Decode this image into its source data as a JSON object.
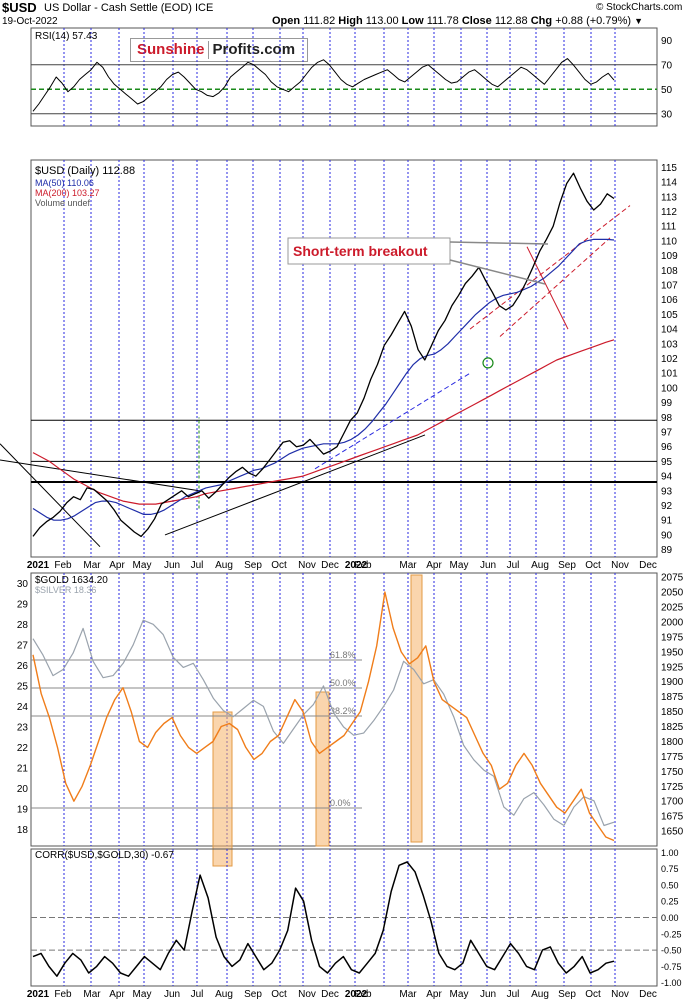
{
  "header": {
    "symbol": "$USD",
    "description": "US Dollar - Cash Settle (EOD) ICE",
    "date": "19-Oct-2022",
    "open_label": "Open",
    "open": "111.82",
    "high_label": "High",
    "high": "113.00",
    "low_label": "Low",
    "low": "111.78",
    "close_label": "Close",
    "close": "112.88",
    "chg_label": "Chg",
    "chg": "+0.88 (+0.79%)",
    "watermark": "© StockCharts.com"
  },
  "logo": {
    "part1": "Sunshine",
    "part2": "Profits.com"
  },
  "colors": {
    "usd_price": "#000000",
    "ma50": "#1f2ea8",
    "ma200": "#cc1b2b",
    "gold": "#f07d1a",
    "silver": "#9aa3ad",
    "corr": "#000000",
    "rsi_mid": "#1a8a1a",
    "month_grid": "#2a2ae0",
    "highlight": "#f5b26a",
    "annotation": "#cc1b2b",
    "trend_blue": "#2a2ae0"
  },
  "chart_data": [
    {
      "id": "rsi",
      "type": "line",
      "legend": "RSI(14) 57.43",
      "ylim": [
        20,
        100
      ],
      "ticks": [
        30,
        50,
        70,
        90
      ],
      "reference_lines": [
        30,
        50,
        70
      ],
      "series": [
        {
          "values": [
            32,
            38,
            45,
            52,
            60,
            55,
            48,
            52,
            58,
            62,
            66,
            72,
            68,
            60,
            54,
            50,
            46,
            42,
            38,
            40,
            44,
            48,
            52,
            58,
            62,
            64,
            60,
            55,
            50,
            48,
            45,
            44,
            47,
            52,
            60,
            64,
            68,
            72,
            70,
            66,
            62,
            56,
            52,
            50,
            48,
            52,
            56,
            62,
            68,
            72,
            74,
            70,
            64,
            58,
            54,
            52,
            55,
            58,
            60,
            62,
            64,
            66,
            62,
            58,
            56,
            60,
            64,
            68,
            70,
            66,
            62,
            58,
            55,
            56,
            60,
            64,
            66,
            62,
            58,
            54,
            52,
            56,
            60,
            64,
            68,
            66,
            62,
            58,
            54,
            60,
            66,
            72,
            75,
            70,
            64,
            58,
            54,
            56,
            60,
            63,
            57.43
          ]
        }
      ]
    },
    {
      "id": "usd",
      "type": "line",
      "legend": [
        "$USD (Daily) 112.88",
        "MA(50) 110.06",
        "MA(200) 103.27",
        "Volume undef"
      ],
      "ylim": [
        88.5,
        115.5
      ],
      "ticks": [
        89,
        90,
        91,
        92,
        93,
        94,
        95,
        96,
        97,
        98,
        99,
        100,
        101,
        102,
        103,
        104,
        105,
        106,
        107,
        108,
        109,
        110,
        111,
        112,
        113,
        114,
        115
      ],
      "horizontal_lines": [
        93.6,
        95,
        97.8
      ],
      "x_labels": [
        "2021",
        "Feb",
        "Mar",
        "Apr",
        "May",
        "Jun",
        "Jul",
        "Aug",
        "Sep",
        "Oct",
        "Nov",
        "Dec",
        "2022",
        "Feb",
        "Mar",
        "Apr",
        "May",
        "Jun",
        "Jul",
        "Aug",
        "Sep",
        "Oct",
        "Nov",
        "Dec"
      ],
      "annotation": "Short-term breakout",
      "series": [
        {
          "name": "$USD (Daily)",
          "values": [
            89.9,
            90.5,
            90.9,
            91.2,
            91.6,
            92.2,
            92.6,
            92.4,
            93.2,
            93.1,
            92.7,
            92.3,
            91.7,
            91.0,
            90.6,
            90.2,
            89.9,
            90.4,
            91.1,
            92.1,
            92.4,
            92.7,
            93.0,
            92.6,
            92.8,
            93.0,
            92.5,
            92.9,
            93.4,
            93.9,
            94.3,
            94.6,
            94.2,
            94.0,
            94.5,
            95.1,
            95.7,
            96.3,
            96.4,
            96.0,
            96.1,
            96.5,
            96.0,
            95.5,
            95.7,
            96.0,
            96.9,
            97.8,
            98.3,
            99.3,
            100.6,
            101.6,
            102.9,
            103.6,
            104.4,
            105.2,
            104.2,
            102.6,
            101.9,
            102.9,
            103.9,
            104.6,
            105.6,
            106.3,
            107.1,
            107.6,
            108.2,
            107.3,
            106.5,
            105.6,
            105.3,
            105.6,
            106.3,
            107.2,
            108.2,
            109.3,
            110.1,
            111.0,
            112.6,
            113.9,
            114.6,
            113.6,
            112.7,
            112.1,
            112.5,
            113.2,
            112.88
          ]
        },
        {
          "name": "MA(50)",
          "values": [
            91.8,
            91.5,
            91.2,
            91.0,
            91.0,
            91.1,
            91.3,
            91.6,
            91.9,
            92.2,
            92.3,
            92.3,
            92.2,
            92.0,
            91.8,
            91.6,
            91.4,
            91.4,
            91.5,
            91.7,
            92.0,
            92.3,
            92.6,
            92.8,
            93.0,
            93.2,
            93.3,
            93.4,
            93.6,
            93.8,
            94.0,
            94.2,
            94.4,
            94.5,
            94.7,
            94.9,
            95.2,
            95.5,
            95.7,
            95.9,
            96.0,
            96.1,
            96.2,
            96.2,
            96.2,
            96.3,
            96.5,
            96.8,
            97.2,
            97.7,
            98.3,
            98.9,
            99.6,
            100.3,
            101.0,
            101.6,
            102.0,
            102.2,
            102.3,
            102.6,
            103.0,
            103.5,
            104.0,
            104.5,
            105.0,
            105.4,
            105.8,
            106.1,
            106.3,
            106.4,
            106.5,
            106.7,
            106.9,
            107.2,
            107.5,
            107.9,
            108.3,
            108.8,
            109.3,
            109.8,
            110.0,
            110.1,
            110.1,
            110.1,
            110.06
          ]
        },
        {
          "name": "MA(200)",
          "values": [
            95.6,
            95.3,
            95.0,
            94.6,
            94.2,
            93.8,
            93.5,
            93.2,
            92.9,
            92.7,
            92.5,
            92.3,
            92.2,
            92.1,
            92.1,
            92.1,
            92.2,
            92.3,
            92.4,
            92.5,
            92.6,
            92.8,
            92.9,
            93.0,
            93.1,
            93.2,
            93.3,
            93.4,
            93.5,
            93.6,
            93.7,
            93.8,
            93.9,
            94.0,
            94.2,
            94.4,
            94.6,
            94.8,
            95.0,
            95.2,
            95.4,
            95.6,
            95.8,
            96.0,
            96.2,
            96.4,
            96.6,
            96.8,
            97.1,
            97.4,
            97.7,
            98.0,
            98.3,
            98.6,
            98.9,
            99.2,
            99.5,
            99.8,
            100.1,
            100.4,
            100.7,
            101.0,
            101.3,
            101.6,
            101.9,
            102.1,
            102.3,
            102.5,
            102.7,
            102.9,
            103.1,
            103.27
          ]
        }
      ]
    },
    {
      "id": "gold_silver",
      "type": "line",
      "legend": [
        "$GOLD 1634.20",
        "$SILVER 18.36"
      ],
      "left_ticks": [
        18,
        19,
        20,
        21,
        22,
        23,
        24,
        25,
        26,
        27,
        28,
        29,
        30
      ],
      "right_ticks": [
        1650,
        1675,
        1700,
        1725,
        1750,
        1775,
        1800,
        1825,
        1850,
        1875,
        1900,
        1925,
        1950,
        1975,
        2000,
        2025,
        2050,
        2075
      ],
      "ylim_gold": [
        1625,
        2082
      ],
      "ylim_silver": [
        17.2,
        30.5
      ],
      "fib_levels": [
        {
          "label": "61.8%"
        },
        {
          "label": "50.0%"
        },
        {
          "label": "38.2%"
        },
        {
          "label": "0.0%"
        }
      ],
      "series": [
        {
          "name": "$GOLD",
          "values": [
            1945,
            1880,
            1840,
            1790,
            1730,
            1700,
            1725,
            1760,
            1800,
            1840,
            1870,
            1890,
            1850,
            1800,
            1790,
            1815,
            1830,
            1840,
            1810,
            1790,
            1780,
            1790,
            1800,
            1825,
            1830,
            1820,
            1790,
            1770,
            1780,
            1800,
            1810,
            1840,
            1870,
            1850,
            1800,
            1780,
            1790,
            1800,
            1810,
            1830,
            1850,
            1900,
            1960,
            2050,
            1990,
            1950,
            1930,
            1940,
            1960,
            1900,
            1870,
            1860,
            1850,
            1840,
            1810,
            1780,
            1760,
            1720,
            1730,
            1760,
            1780,
            1760,
            1730,
            1710,
            1690,
            1680,
            1700,
            1720,
            1680,
            1660,
            1640,
            1634.2
          ]
        },
        {
          "name": "$SILVER",
          "values": [
            27.3,
            26.5,
            25.5,
            25.8,
            26.6,
            27.8,
            26.2,
            25.4,
            25.5,
            26.1,
            27.0,
            28.2,
            28.0,
            27.5,
            26.4,
            25.9,
            26.1,
            25.3,
            24.4,
            23.8,
            23.5,
            23.9,
            24.3,
            24.0,
            22.8,
            22.2,
            22.9,
            23.6,
            24.1,
            25.0,
            23.7,
            23.0,
            22.6,
            22.7,
            23.3,
            24.0,
            24.8,
            26.2,
            25.8,
            25.1,
            25.3,
            24.6,
            23.5,
            22.1,
            21.4,
            20.9,
            20.6,
            19.1,
            18.7,
            19.5,
            19.8,
            19.2,
            18.5,
            18.2,
            19.1,
            19.6,
            19.4,
            18.2,
            18.36
          ]
        }
      ]
    },
    {
      "id": "corr",
      "type": "line",
      "legend": "CORR($USD,$GOLD,30) -0.67",
      "ylim": [
        -1.05,
        1.05
      ],
      "ticks": [
        -1.0,
        -0.75,
        -0.5,
        -0.25,
        0.0,
        0.25,
        0.5,
        0.75,
        1.0
      ],
      "tick_labels": [
        "-1.00",
        "-0.75",
        "-0.50",
        "-0.25",
        "0.00",
        "0.25",
        "0.50",
        "0.75",
        "1.00"
      ],
      "reference_lines": [
        -0.5,
        0.0
      ],
      "series": [
        {
          "values": [
            -0.6,
            -0.55,
            -0.75,
            -0.9,
            -0.7,
            -0.55,
            -0.65,
            -0.85,
            -0.75,
            -0.6,
            -0.7,
            -0.85,
            -0.9,
            -0.75,
            -0.6,
            -0.7,
            -0.8,
            -0.55,
            -0.35,
            -0.5,
            0.1,
            0.65,
            0.3,
            -0.3,
            -0.6,
            -0.75,
            -0.65,
            -0.4,
            -0.6,
            -0.8,
            -0.7,
            -0.5,
            -0.2,
            0.45,
            0.25,
            -0.35,
            -0.75,
            -0.85,
            -0.7,
            -0.6,
            -0.8,
            -0.85,
            -0.7,
            -0.55,
            -0.2,
            0.4,
            0.8,
            0.85,
            0.7,
            0.35,
            -0.05,
            -0.55,
            -0.75,
            -0.8,
            -0.7,
            -0.35,
            -0.55,
            -0.75,
            -0.8,
            -0.6,
            -0.4,
            -0.55,
            -0.75,
            -0.8,
            -0.5,
            -0.45,
            -0.7,
            -0.85,
            -0.75,
            -0.6,
            -0.85,
            -0.8,
            -0.7,
            -0.67
          ]
        }
      ]
    }
  ]
}
